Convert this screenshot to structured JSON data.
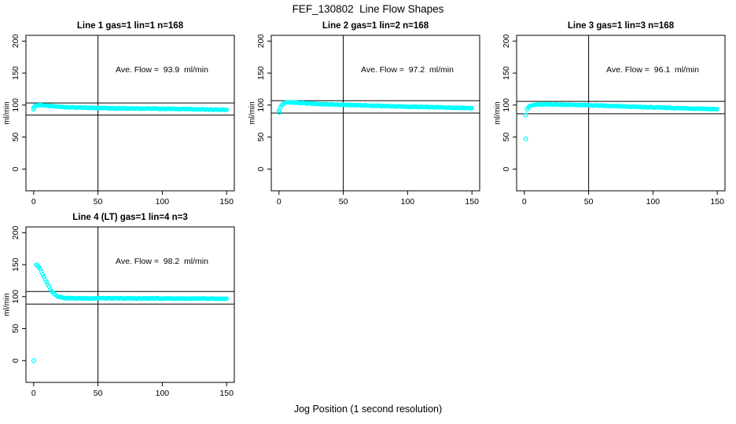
{
  "figure": {
    "title": "FEF_130802  Line Flow Shapes",
    "xlabel": "Jog Position (1 second resolution)",
    "background": "#FFFFFF",
    "axis_color": "#000000",
    "marker_color": "#00FFFF"
  },
  "chart_data": [
    {
      "type": "scatter",
      "title": "Line 1 gas=1 lin=1 n=168",
      "annotation": "Ave. Flow =  93.9  ml/min",
      "ave_flow_ml_min": 93.9,
      "n": 168,
      "ylabel": "ml/min",
      "xticks": [
        0,
        50,
        100,
        150
      ],
      "yticks": [
        0,
        50,
        100,
        150,
        200
      ],
      "xlim": [
        -6,
        156
      ],
      "ylim": [
        -34,
        209
      ],
      "vline_x": 50,
      "ref_lines_y": [
        103.3,
        84.5
      ],
      "x_start": 0,
      "x_end": 150,
      "profile_keypoints": [
        [
          0,
          96.5
        ],
        [
          1,
          98.5
        ],
        [
          2,
          99.5
        ],
        [
          4,
          100
        ],
        [
          6,
          100
        ],
        [
          8,
          99.5
        ],
        [
          10,
          99
        ],
        [
          15,
          98
        ],
        [
          20,
          97.3
        ],
        [
          30,
          96.3
        ],
        [
          40,
          95.8
        ],
        [
          50,
          95.4
        ],
        [
          60,
          95.2
        ],
        [
          70,
          95.0
        ],
        [
          80,
          94.8
        ],
        [
          90,
          94.5
        ],
        [
          100,
          94.2
        ],
        [
          110,
          94.0
        ],
        [
          120,
          93.7
        ],
        [
          130,
          93.3
        ],
        [
          140,
          92.8
        ],
        [
          150,
          92.3
        ]
      ],
      "outliers": [
        [
          0,
          93.5
        ]
      ]
    },
    {
      "type": "scatter",
      "title": "Line 2 gas=1 lin=2 n=168",
      "annotation": "Ave. Flow =  97.2  ml/min",
      "ave_flow_ml_min": 97.2,
      "n": 168,
      "ylabel": "ml/min",
      "xticks": [
        0,
        50,
        100,
        150
      ],
      "yticks": [
        0,
        50,
        100,
        150,
        200
      ],
      "xlim": [
        -6,
        156
      ],
      "ylim": [
        -34,
        209
      ],
      "vline_x": 50,
      "ref_lines_y": [
        106.9,
        87.5
      ],
      "x_start": 0,
      "x_end": 150,
      "profile_keypoints": [
        [
          0,
          91.5
        ],
        [
          1,
          96
        ],
        [
          2,
          99.5
        ],
        [
          3,
          101.5
        ],
        [
          4,
          103
        ],
        [
          6,
          104
        ],
        [
          8,
          104.3
        ],
        [
          10,
          104.2
        ],
        [
          15,
          103.5
        ],
        [
          20,
          102.8
        ],
        [
          30,
          101.8
        ],
        [
          40,
          101
        ],
        [
          50,
          100.4
        ],
        [
          60,
          99.8
        ],
        [
          70,
          99.2
        ],
        [
          80,
          98.6
        ],
        [
          90,
          98
        ],
        [
          100,
          97.5
        ],
        [
          110,
          97
        ],
        [
          120,
          96.6
        ],
        [
          130,
          96.2
        ],
        [
          140,
          95.8
        ],
        [
          150,
          95.3
        ]
      ],
      "outliers": [
        [
          0,
          88.5
        ]
      ]
    },
    {
      "type": "scatter",
      "title": "Line 3 gas=1 lin=3 n=168",
      "annotation": "Ave. Flow =  96.1  ml/min",
      "ave_flow_ml_min": 96.1,
      "n": 168,
      "ylabel": "ml/min",
      "xticks": [
        0,
        50,
        100,
        150
      ],
      "yticks": [
        0,
        50,
        100,
        150,
        200
      ],
      "xlim": [
        -6,
        156
      ],
      "ylim": [
        -34,
        209
      ],
      "vline_x": 50,
      "ref_lines_y": [
        105.7,
        86.5
      ],
      "x_start": 2,
      "x_end": 150,
      "profile_keypoints": [
        [
          2,
          93
        ],
        [
          3,
          96
        ],
        [
          4,
          98
        ],
        [
          6,
          99.5
        ],
        [
          8,
          100.3
        ],
        [
          10,
          100.8
        ],
        [
          15,
          101
        ],
        [
          20,
          101
        ],
        [
          30,
          100.8
        ],
        [
          40,
          100.3
        ],
        [
          50,
          99.7
        ],
        [
          60,
          99
        ],
        [
          70,
          98.3
        ],
        [
          80,
          97.7
        ],
        [
          90,
          97
        ],
        [
          100,
          96.4
        ],
        [
          110,
          95.8
        ],
        [
          120,
          95.2
        ],
        [
          130,
          94.7
        ],
        [
          140,
          94.2
        ],
        [
          150,
          93.6
        ]
      ],
      "outliers": [
        [
          1,
          84.5
        ],
        [
          1,
          47
        ]
      ]
    },
    {
      "type": "scatter",
      "title": "Line 4 (LT) gas=1 lin=4 n=3",
      "annotation": "Ave. Flow =  98.2  ml/min",
      "ave_flow_ml_min": 98.2,
      "n": 3,
      "ylabel": "ml/min",
      "xticks": [
        0,
        50,
        100,
        150
      ],
      "yticks": [
        0,
        50,
        100,
        150,
        200
      ],
      "xlim": [
        -6,
        156
      ],
      "ylim": [
        -34,
        209
      ],
      "vline_x": 50,
      "ref_lines_y": [
        108.0,
        88.4
      ],
      "x_start": 2,
      "x_end": 150,
      "profile_keypoints": [
        [
          2,
          150
        ],
        [
          3,
          148.5
        ],
        [
          4,
          146
        ],
        [
          5,
          143
        ],
        [
          6,
          139
        ],
        [
          7,
          135
        ],
        [
          8,
          131
        ],
        [
          9,
          127
        ],
        [
          10,
          123
        ],
        [
          11,
          119
        ],
        [
          12,
          115.5
        ],
        [
          13,
          112
        ],
        [
          14,
          109
        ],
        [
          15,
          106.5
        ],
        [
          16,
          104.5
        ],
        [
          17,
          103
        ],
        [
          18,
          101.5
        ],
        [
          19,
          100.5
        ],
        [
          20,
          99.7
        ],
        [
          22,
          98.7
        ],
        [
          24,
          98.2
        ],
        [
          26,
          97.8
        ],
        [
          28,
          97.6
        ],
        [
          30,
          97.5
        ],
        [
          40,
          97.4
        ],
        [
          50,
          97.5
        ],
        [
          60,
          97.4
        ],
        [
          70,
          97.3
        ],
        [
          80,
          97.3
        ],
        [
          90,
          97.2
        ],
        [
          100,
          97.2
        ],
        [
          110,
          97.1
        ],
        [
          120,
          97.0
        ],
        [
          130,
          96.9
        ],
        [
          140,
          96.7
        ],
        [
          150,
          96.3
        ]
      ],
      "outliers": [
        [
          0,
          0
        ]
      ]
    }
  ]
}
